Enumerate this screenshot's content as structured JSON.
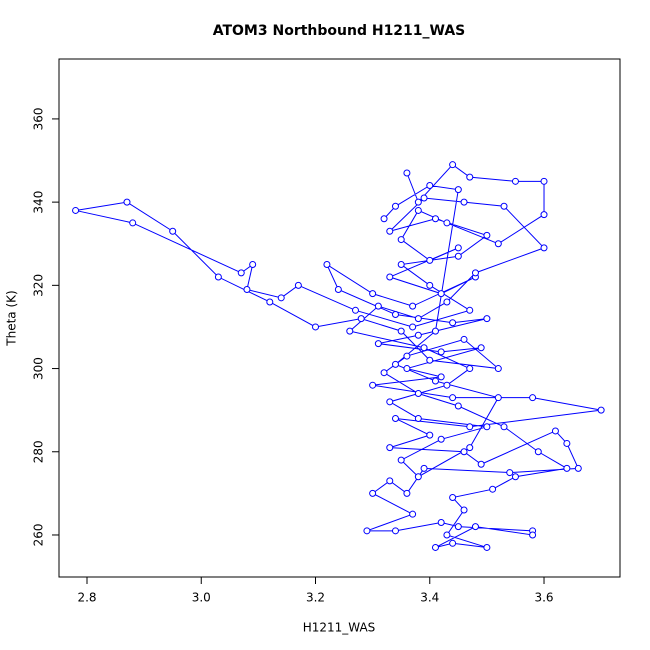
{
  "chart_data": {
    "type": "line",
    "title": "ATOM3 Northbound H1211_WAS",
    "x_label": "H1211_WAS",
    "y_label": "Theta (K)",
    "color": "#0000ff",
    "xlim": [
      2.751,
      3.733
    ],
    "ylim": [
      249.9,
      374.4
    ],
    "xticks": [
      2.8,
      {
        "value": 3,
        "label": "3.0"
      },
      3.2,
      3.4,
      3.6
    ],
    "yticks": [
      260,
      280,
      300,
      320,
      340,
      360
    ],
    "x": [
      3.36,
      3.38,
      3.44,
      3.47,
      3.55,
      3.6,
      3.6,
      3.52,
      3.43,
      3.38,
      3.35,
      3.4,
      3.45,
      3.33,
      3.42,
      3.48,
      3.37,
      3.3,
      3.22,
      3.24,
      3.34,
      3.44,
      3.5,
      3.38,
      3.31,
      3.42,
      3.49,
      3.36,
      3.42,
      3.3,
      3.44,
      3.58,
      3.7,
      3.47,
      3.34,
      3.4,
      3.33,
      3.46,
      3.49,
      3.62,
      3.64,
      3.66,
      3.54,
      3.39,
      3.36,
      3.33,
      3.3,
      3.37,
      3.29,
      3.34,
      3.42,
      3.45,
      3.58,
      3.58,
      3.48,
      3.41,
      3.44,
      3.5,
      3.43,
      3.46,
      3.44,
      3.51,
      3.55,
      3.64,
      3.59,
      3.53,
      3.45,
      3.38,
      3.32,
      3.36,
      3.46,
      3.52,
      3.4,
      3.35,
      3.28,
      3.2,
      3.12,
      3.03,
      2.95,
      2.87,
      2.78,
      2.88,
      3.07,
      3.09,
      3.08,
      3.14,
      3.17,
      3.27,
      3.37,
      3.47,
      3.4,
      3.35,
      3.45,
      3.5,
      3.41,
      3.33,
      3.39,
      3.46,
      3.53,
      3.6,
      3.48,
      3.43,
      3.38,
      3.31,
      3.26,
      3.39,
      3.47,
      3.43,
      3.33,
      3.38,
      3.5,
      3.42,
      3.35,
      3.38,
      3.47,
      3.52,
      3.41,
      3.34,
      3.41,
      3.45,
      3.4,
      3.34,
      3.32
    ],
    "values": [
      347,
      340,
      349,
      346,
      345,
      345,
      337,
      330,
      335,
      338,
      331,
      326,
      329,
      322,
      318,
      322,
      315,
      318,
      325,
      319,
      313,
      311,
      312,
      308,
      306,
      304,
      305,
      300,
      298,
      296,
      293,
      293,
      290,
      286,
      288,
      284,
      281,
      280,
      277,
      285,
      282,
      276,
      275,
      276,
      270,
      273,
      270,
      265,
      261,
      261,
      263,
      262,
      261,
      260,
      262,
      257,
      258,
      257,
      260,
      266,
      269,
      271,
      274,
      276,
      280,
      286,
      291,
      294,
      299,
      303,
      307,
      300,
      302,
      309,
      312,
      310,
      316,
      322,
      333,
      340,
      338,
      335,
      323,
      325,
      319,
      317,
      320,
      314,
      310,
      314,
      320,
      325,
      327,
      332,
      336,
      333,
      341,
      340,
      339,
      329,
      323,
      316,
      312,
      315,
      309,
      305,
      300,
      296,
      292,
      288,
      286,
      283,
      278,
      274,
      281,
      293,
      297,
      301,
      309,
      343,
      344,
      339,
      336
    ]
  }
}
